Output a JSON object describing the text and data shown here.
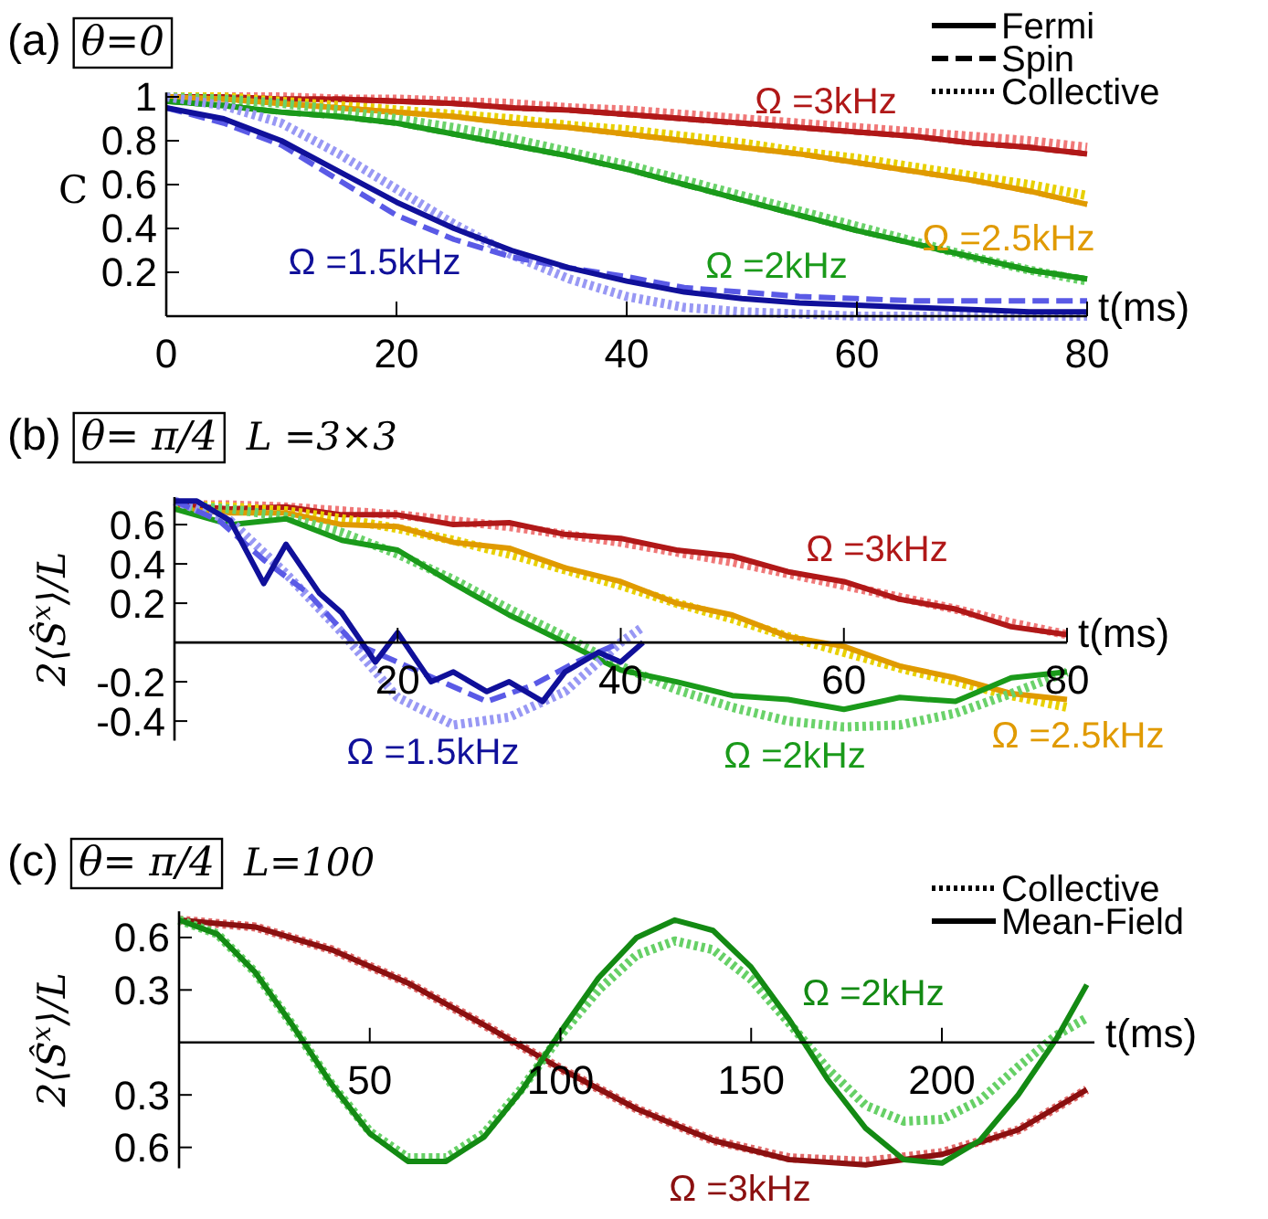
{
  "chart_data": [
    {
      "type": "line",
      "title": "(a)",
      "subtitle": "θ=0",
      "xlabel": "t(ms)",
      "ylabel": "C",
      "xlim": [
        0,
        80
      ],
      "ylim": [
        0,
        1.02
      ],
      "xticks": [
        0,
        20,
        40,
        60,
        80
      ],
      "yticks": [
        0.2,
        0.4,
        0.6,
        0.8,
        1
      ],
      "x": [
        0,
        5,
        10,
        15,
        20,
        25,
        30,
        35,
        40,
        45,
        50,
        55,
        60,
        65,
        70,
        75,
        80
      ],
      "series": [
        {
          "color": "#f07878",
          "line_style": "dotted",
          "values": [
            1,
            1,
            1,
            0.99,
            0.99,
            0.98,
            0.97,
            0.95,
            0.94,
            0.92,
            0.9,
            0.88,
            0.86,
            0.84,
            0.82,
            0.8,
            0.77
          ]
        },
        {
          "color": "#b01818",
          "line_style": "dashed",
          "values": [
            1,
            1,
            0.99,
            0.99,
            0.98,
            0.97,
            0.95,
            0.94,
            0.92,
            0.9,
            0.88,
            0.86,
            0.84,
            0.82,
            0.79,
            0.77,
            0.74
          ]
        },
        {
          "color": "#b01818",
          "line_style": "solid",
          "values": [
            1,
            1,
            0.99,
            0.99,
            0.98,
            0.97,
            0.95,
            0.94,
            0.92,
            0.9,
            0.88,
            0.86,
            0.84,
            0.82,
            0.79,
            0.77,
            0.74
          ]
        },
        {
          "color": "#e8d000",
          "line_style": "dotted",
          "values": [
            1,
            1,
            0.98,
            0.96,
            0.94,
            0.92,
            0.9,
            0.87,
            0.85,
            0.82,
            0.79,
            0.75,
            0.72,
            0.68,
            0.64,
            0.6,
            0.55
          ]
        },
        {
          "color": "#e09a00",
          "line_style": "dashed",
          "values": [
            1,
            0.99,
            0.97,
            0.95,
            0.93,
            0.91,
            0.88,
            0.86,
            0.83,
            0.8,
            0.77,
            0.74,
            0.7,
            0.66,
            0.62,
            0.57,
            0.51
          ]
        },
        {
          "color": "#e09a00",
          "line_style": "solid",
          "values": [
            1,
            0.99,
            0.97,
            0.95,
            0.93,
            0.91,
            0.88,
            0.86,
            0.83,
            0.8,
            0.77,
            0.74,
            0.7,
            0.66,
            0.62,
            0.57,
            0.51
          ]
        },
        {
          "color": "#6ad26a",
          "line_style": "dotted",
          "values": [
            1,
            0.99,
            0.97,
            0.94,
            0.9,
            0.86,
            0.81,
            0.75,
            0.69,
            0.62,
            0.55,
            0.48,
            0.41,
            0.34,
            0.27,
            0.21,
            0.16
          ]
        },
        {
          "color": "#1a9a1a",
          "line_style": "dashed",
          "values": [
            0.98,
            0.96,
            0.93,
            0.91,
            0.88,
            0.83,
            0.78,
            0.73,
            0.67,
            0.6,
            0.53,
            0.46,
            0.39,
            0.33,
            0.27,
            0.21,
            0.17
          ]
        },
        {
          "color": "#1a9a1a",
          "line_style": "solid",
          "values": [
            0.98,
            0.96,
            0.93,
            0.91,
            0.88,
            0.83,
            0.78,
            0.73,
            0.67,
            0.6,
            0.53,
            0.46,
            0.39,
            0.33,
            0.27,
            0.21,
            0.17
          ]
        },
        {
          "color": "#9898f4",
          "line_style": "dotted",
          "values": [
            1,
            0.96,
            0.88,
            0.74,
            0.58,
            0.42,
            0.28,
            0.17,
            0.09,
            0.04,
            0.02,
            0.01,
            0,
            0,
            0,
            0,
            0
          ]
        },
        {
          "color": "#5a5ae6",
          "line_style": "dashed",
          "values": [
            0.95,
            0.88,
            0.78,
            0.62,
            0.46,
            0.35,
            0.27,
            0.22,
            0.18,
            0.13,
            0.11,
            0.09,
            0.08,
            0.07,
            0.07,
            0.07,
            0.07
          ]
        },
        {
          "color": "#10109a",
          "line_style": "solid",
          "values": [
            0.95,
            0.9,
            0.8,
            0.66,
            0.52,
            0.4,
            0.3,
            0.22,
            0.16,
            0.11,
            0.08,
            0.06,
            0.05,
            0.04,
            0.03,
            0.02,
            0.02
          ]
        }
      ],
      "annotations": [
        "Fermi",
        "Spin",
        "Collective",
        "Ω =3kHz",
        "Ω =2.5kHz",
        "Ω =2kHz",
        "Ω =1.5kHz"
      ]
    },
    {
      "type": "line",
      "title": "(b)",
      "subtitle": "θ= π/4",
      "xlabel": "t(ms)",
      "ylabel": "2⟨Ŝ$^{x}$⟩/L",
      "xlim": [
        0,
        80
      ],
      "ylim": [
        -0.5,
        0.74
      ],
      "xticks": [
        20,
        40,
        60,
        80
      ],
      "yticks": [
        -0.4,
        -0.2,
        0.2,
        0.4,
        0.6
      ],
      "x": [
        0,
        5,
        10,
        15,
        20,
        25,
        30,
        35,
        40,
        45,
        50,
        55,
        60,
        65,
        70,
        75,
        80
      ],
      "series": [
        {
          "color": "#f07878",
          "line_style": "dotted",
          "values": [
            0.7,
            0.7,
            0.69,
            0.67,
            0.65,
            0.62,
            0.59,
            0.55,
            0.51,
            0.46,
            0.41,
            0.35,
            0.29,
            0.23,
            0.17,
            0.1,
            0.04
          ]
        },
        {
          "color": "#b01818",
          "line_style": "solid",
          "values": [
            0.7,
            0.68,
            0.69,
            0.65,
            0.65,
            0.6,
            0.61,
            0.55,
            0.53,
            0.47,
            0.44,
            0.36,
            0.31,
            0.22,
            0.17,
            0.08,
            0.04
          ]
        },
        {
          "color": "#e8d000",
          "line_style": "dotted",
          "values": [
            0.7,
            0.69,
            0.67,
            0.63,
            0.58,
            0.52,
            0.45,
            0.37,
            0.29,
            0.2,
            0.12,
            0.03,
            -0.05,
            -0.13,
            -0.2,
            -0.27,
            -0.33
          ]
        },
        {
          "color": "#e09a00",
          "line_style": "solid",
          "values": [
            0.68,
            0.66,
            0.66,
            0.6,
            0.59,
            0.51,
            0.48,
            0.38,
            0.31,
            0.2,
            0.14,
            0.03,
            -0.02,
            -0.12,
            -0.18,
            -0.26,
            -0.29
          ]
        },
        {
          "color": "#6ad26a",
          "line_style": "dotted",
          "values": [
            0.7,
            0.68,
            0.64,
            0.56,
            0.45,
            0.32,
            0.17,
            0.03,
            -0.12,
            -0.24,
            -0.33,
            -0.4,
            -0.43,
            -0.42,
            -0.36,
            -0.26,
            -0.15
          ]
        },
        {
          "color": "#1a9a1a",
          "line_style": "solid",
          "values": [
            0.68,
            0.6,
            0.63,
            0.52,
            0.47,
            0.3,
            0.14,
            0.0,
            -0.14,
            -0.2,
            -0.27,
            -0.29,
            -0.34,
            -0.28,
            -0.3,
            -0.18,
            -0.15
          ]
        },
        {
          "color": "#9898f4",
          "line_style": "dotted",
          "x": [
            0,
            5,
            10,
            15,
            20,
            25,
            30,
            35,
            40,
            42
          ],
          "values": [
            0.72,
            0.62,
            0.35,
            0.05,
            -0.28,
            -0.42,
            -0.38,
            -0.25,
            0.0,
            0.08
          ]
        },
        {
          "color": "#5a5ae6",
          "line_style": "dashed",
          "x": [
            0,
            4,
            8,
            12,
            16,
            20,
            24,
            28,
            32,
            36,
            40
          ],
          "values": [
            0.72,
            0.62,
            0.42,
            0.25,
            0.0,
            -0.1,
            -0.2,
            -0.3,
            -0.22,
            -0.1,
            0.0
          ]
        },
        {
          "color": "#10109a",
          "line_style": "solid",
          "x": [
            0,
            2,
            5,
            8,
            10,
            13,
            15,
            18,
            20,
            23,
            25,
            28,
            30,
            33,
            35,
            38,
            40,
            42
          ],
          "values": [
            0.72,
            0.72,
            0.62,
            0.3,
            0.5,
            0.25,
            0.15,
            -0.1,
            0.05,
            -0.2,
            -0.15,
            -0.25,
            -0.2,
            -0.3,
            -0.15,
            -0.05,
            -0.1,
            0.0
          ]
        }
      ],
      "annotations": [
        "L =3×3",
        "Ω =3kHz",
        "Ω =2.5kHz",
        "Ω =2kHz",
        "Ω =1.5kHz"
      ]
    },
    {
      "type": "line",
      "title": "(c)",
      "subtitle": "θ= π/4",
      "xlabel": "t(ms)",
      "ylabel": "2⟨Ŝ$^{x}$⟩/L",
      "xlim": [
        0,
        240
      ],
      "ylim": [
        -0.72,
        0.75
      ],
      "xticks": [
        50,
        100,
        150,
        200
      ],
      "yticks": [
        {
          "value": -0.6,
          "label": "0.6"
        },
        {
          "value": -0.3,
          "label": "0.3"
        },
        0.3,
        0.6
      ],
      "series": [
        {
          "color": "#e06868",
          "line_style": "dotted",
          "x": [
            0,
            20,
            40,
            60,
            80,
            100,
            120,
            140,
            160,
            180,
            200,
            220,
            238
          ],
          "values": [
            0.7,
            0.66,
            0.53,
            0.34,
            0.1,
            -0.15,
            -0.38,
            -0.56,
            -0.66,
            -0.68,
            -0.63,
            -0.5,
            -0.27
          ]
        },
        {
          "color": "#8b1010",
          "line_style": "solid",
          "x": [
            0,
            20,
            40,
            60,
            80,
            100,
            120,
            140,
            160,
            180,
            200,
            220,
            238
          ],
          "values": [
            0.7,
            0.66,
            0.53,
            0.34,
            0.1,
            -0.15,
            -0.38,
            -0.56,
            -0.67,
            -0.7,
            -0.64,
            -0.5,
            -0.27
          ]
        },
        {
          "color": "#66d066",
          "line_style": "dotted",
          "x": [
            0,
            10,
            20,
            30,
            40,
            50,
            60,
            70,
            80,
            90,
            100,
            110,
            120,
            130,
            140,
            150,
            160,
            170,
            180,
            190,
            200,
            210,
            220,
            230,
            238
          ],
          "values": [
            0.7,
            0.62,
            0.4,
            0.09,
            -0.24,
            -0.51,
            -0.66,
            -0.66,
            -0.52,
            -0.26,
            0.04,
            0.3,
            0.5,
            0.58,
            0.53,
            0.36,
            0.11,
            -0.15,
            -0.36,
            -0.45,
            -0.44,
            -0.33,
            -0.14,
            0.04,
            0.14
          ]
        },
        {
          "color": "#138a13",
          "line_style": "solid",
          "x": [
            0,
            10,
            20,
            30,
            40,
            50,
            60,
            70,
            80,
            90,
            100,
            110,
            120,
            130,
            140,
            150,
            160,
            170,
            180,
            190,
            200,
            210,
            220,
            230,
            238
          ],
          "values": [
            0.7,
            0.62,
            0.4,
            0.09,
            -0.24,
            -0.52,
            -0.68,
            -0.68,
            -0.54,
            -0.27,
            0.06,
            0.37,
            0.6,
            0.7,
            0.64,
            0.43,
            0.13,
            -0.21,
            -0.49,
            -0.67,
            -0.69,
            -0.56,
            -0.3,
            0.02,
            0.33
          ]
        }
      ],
      "annotations": [
        "L=100",
        "Collective",
        "Mean-Field",
        "Ω =2kHz",
        "Ω =3kHz"
      ]
    }
  ]
}
